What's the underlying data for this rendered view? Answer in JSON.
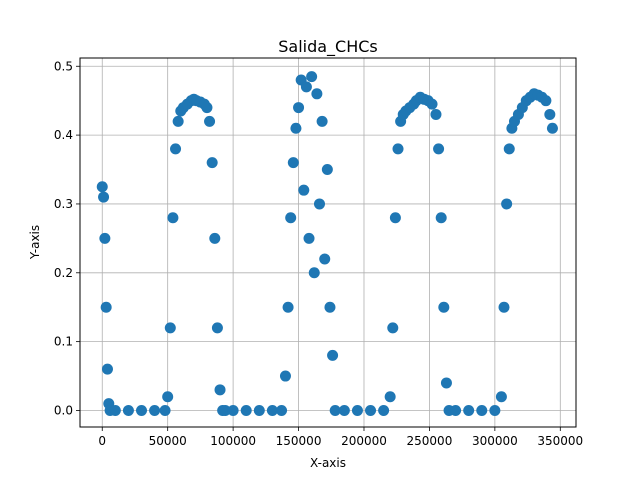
{
  "chart_data": {
    "type": "scatter",
    "title": "Salida_CHCs",
    "xlabel": "X-axis",
    "ylabel": "Y-axis",
    "xlim": [
      -17000,
      362000
    ],
    "ylim": [
      -0.024,
      0.512
    ],
    "x_ticks": [
      0,
      50000,
      100000,
      150000,
      200000,
      250000,
      300000,
      350000
    ],
    "x_tick_labels": [
      "0",
      "50000",
      "100000",
      "150000",
      "200000",
      "250000",
      "300000",
      "350000"
    ],
    "y_ticks": [
      0.0,
      0.1,
      0.2,
      0.3,
      0.4,
      0.5
    ],
    "y_tick_labels": [
      "0.0",
      "0.1",
      "0.2",
      "0.3",
      "0.4",
      "0.5"
    ],
    "grid": true,
    "marker_color": "#1f77b4",
    "series": [
      {
        "x": [
          0,
          1000,
          2000,
          3000,
          4000,
          5000,
          6000,
          10000,
          20000,
          30000,
          40000,
          48000,
          50000,
          52000,
          54000,
          56000,
          58000,
          60000,
          62000,
          65000,
          68000,
          70000,
          72000,
          75000,
          78000,
          80000,
          82000,
          84000,
          86000,
          88000,
          90000,
          92000,
          94000,
          100000,
          110000,
          120000,
          130000,
          137000,
          140000,
          142000,
          144000,
          146000,
          148000,
          150000,
          152000,
          154000,
          156000,
          158000,
          160000,
          162000,
          164000,
          166000,
          168000,
          170000,
          172000,
          174000,
          176000,
          178000,
          185000,
          195000,
          205000,
          215000,
          220000,
          222000,
          224000,
          226000,
          228000,
          230000,
          232000,
          235000,
          238000,
          240000,
          243000,
          246000,
          249000,
          252000,
          255000,
          257000,
          259000,
          261000,
          263000,
          265000,
          270000,
          280000,
          290000,
          300000,
          305000,
          307000,
          309000,
          311000,
          313000,
          315000,
          318000,
          321000,
          324000,
          327000,
          330000,
          333000,
          336000,
          339000,
          342000,
          344000
        ],
        "y": [
          0.325,
          0.31,
          0.25,
          0.15,
          0.06,
          0.01,
          0.0,
          0.0,
          0.0,
          0.0,
          0.0,
          0.0,
          0.02,
          0.12,
          0.28,
          0.38,
          0.42,
          0.435,
          0.44,
          0.445,
          0.45,
          0.452,
          0.45,
          0.448,
          0.445,
          0.44,
          0.42,
          0.36,
          0.25,
          0.12,
          0.03,
          0.0,
          0.0,
          0.0,
          0.0,
          0.0,
          0.0,
          0.0,
          0.05,
          0.15,
          0.28,
          0.36,
          0.41,
          0.44,
          0.48,
          0.32,
          0.47,
          0.25,
          0.485,
          0.2,
          0.46,
          0.3,
          0.42,
          0.22,
          0.35,
          0.15,
          0.08,
          0.0,
          0.0,
          0.0,
          0.0,
          0.0,
          0.02,
          0.12,
          0.28,
          0.38,
          0.42,
          0.43,
          0.435,
          0.44,
          0.445,
          0.45,
          0.455,
          0.452,
          0.45,
          0.445,
          0.43,
          0.38,
          0.28,
          0.15,
          0.04,
          0.0,
          0.0,
          0.0,
          0.0,
          0.0,
          0.02,
          0.15,
          0.3,
          0.38,
          0.41,
          0.42,
          0.43,
          0.44,
          0.45,
          0.455,
          0.46,
          0.458,
          0.455,
          0.45,
          0.43,
          0.41
        ]
      }
    ]
  }
}
